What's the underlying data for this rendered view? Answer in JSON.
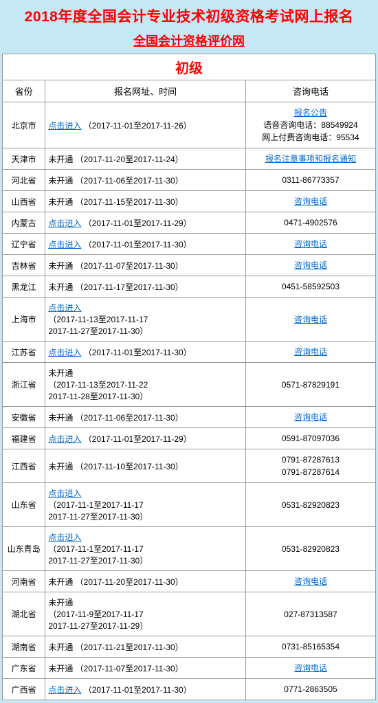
{
  "colors": {
    "page_bg": "#c6e7f4",
    "title_red": "#ff0000",
    "link_blue": "#0066cc",
    "border": "#999999",
    "text": "#000000",
    "cell_bg": "#ffffff"
  },
  "typography": {
    "main_title_size": 21,
    "sub_title_size": 18,
    "level_header_size": 20,
    "col_header_size": 13,
    "body_size": 12
  },
  "main_title": "2018年度全国会计专业技术初级资格考试网上报名",
  "sub_title": "全国会计资格评价网",
  "level_header": "初级",
  "columns": [
    "省份",
    "报名网址、时间",
    "咨询电话"
  ],
  "rows": [
    {
      "province": "北京市",
      "url_link": "点击进入",
      "url_rest": "（2017-11-01至2017-11-26）",
      "phone_link": "报名公告",
      "phone_plain": "语音咨询电话：88549924\n网上付费咨询电话：95534"
    },
    {
      "province": "天津市",
      "url_plain": "未开通 （2017-11-20至2017-11-24）",
      "phone_link": "报名注意事项和报名通知"
    },
    {
      "province": "河北省",
      "url_plain": "未开通 （2017-11-06至2017-11-30）",
      "phone_plain": "0311-86773357"
    },
    {
      "province": "山西省",
      "url_plain": "未开通 （2017-11-15至2017-11-30）",
      "phone_link": "咨询电话"
    },
    {
      "province": "内蒙古",
      "url_link": "点击进入",
      "url_rest": "（2017-11-01至2017-11-29）",
      "phone_plain": "0471-4902576"
    },
    {
      "province": "辽宁省",
      "url_link": "点击进入",
      "url_rest": "（2017-11-01至2017-11-30）",
      "phone_link": "咨询电话"
    },
    {
      "province": "吉林省",
      "url_plain": "未开通 （2017-11-07至2017-11-30）",
      "phone_link": "咨询电话"
    },
    {
      "province": "黑龙江",
      "url_plain": "未开通 （2017-11-17至2017-11-30）",
      "phone_plain": "0451-58592503"
    },
    {
      "province": "上海市",
      "url_link": "点击进入",
      "url_rest": "\n（2017-11-13至2017-11-17\n2017-11-27至2017-11-30）",
      "phone_link": "咨询电话"
    },
    {
      "province": "江苏省",
      "url_link": "点击进入",
      "url_rest": "（2017-11-01至2017-11-30）",
      "phone_link": "咨询电话"
    },
    {
      "province": "浙江省",
      "url_plain": "未开通\n（2017-11-13至2017-11-22\n2017-11-28至2017-11-30）",
      "phone_plain": "0571-87829191"
    },
    {
      "province": "安徽省",
      "url_plain": "未开通 （2017-11-06至2017-11-30）",
      "phone_link": "咨询电话"
    },
    {
      "province": "福建省",
      "url_link": "点击进入",
      "url_rest": "（2017-11-01至2017-11-29）",
      "phone_plain": "0591-87097036"
    },
    {
      "province": "江西省",
      "url_plain": "未开通 （2017-11-10至2017-11-30）",
      "phone_plain": "0791-87287613\n0791-87287614"
    },
    {
      "province": "山东省",
      "url_link": "点击进入",
      "url_rest": "\n（2017-11-1至2017-11-17\n2017-11-27至2017-11-30）",
      "phone_plain": "0531-82920823"
    },
    {
      "province": "山东青岛",
      "url_link": "点击进入",
      "url_rest": "\n（2017-11-1至2017-11-17\n2017-11-27至2017-11-30）",
      "phone_plain": "0531-82920823"
    },
    {
      "province": "河南省",
      "url_plain": "未开通 （2017-11-20至2017-11-30）",
      "phone_link": "咨询电话"
    },
    {
      "province": "湖北省",
      "url_plain": "未开通\n（2017-11-9至2017-11-17\n2017-11-27至2017-11-29）",
      "phone_plain": "027-87313587"
    },
    {
      "province": "湖南省",
      "url_plain": "未开通 （2017-11-21至2017-11-30）",
      "phone_plain": "0731-85165354"
    },
    {
      "province": "广东省",
      "url_plain": "未开通 （2017-11-07至2017-11-30）",
      "phone_link": "咨询电话"
    },
    {
      "province": "广西省",
      "url_link": "点击进入",
      "url_rest": "（2017-11-01至2017-11-30）",
      "phone_plain": "0771-2863505"
    }
  ]
}
